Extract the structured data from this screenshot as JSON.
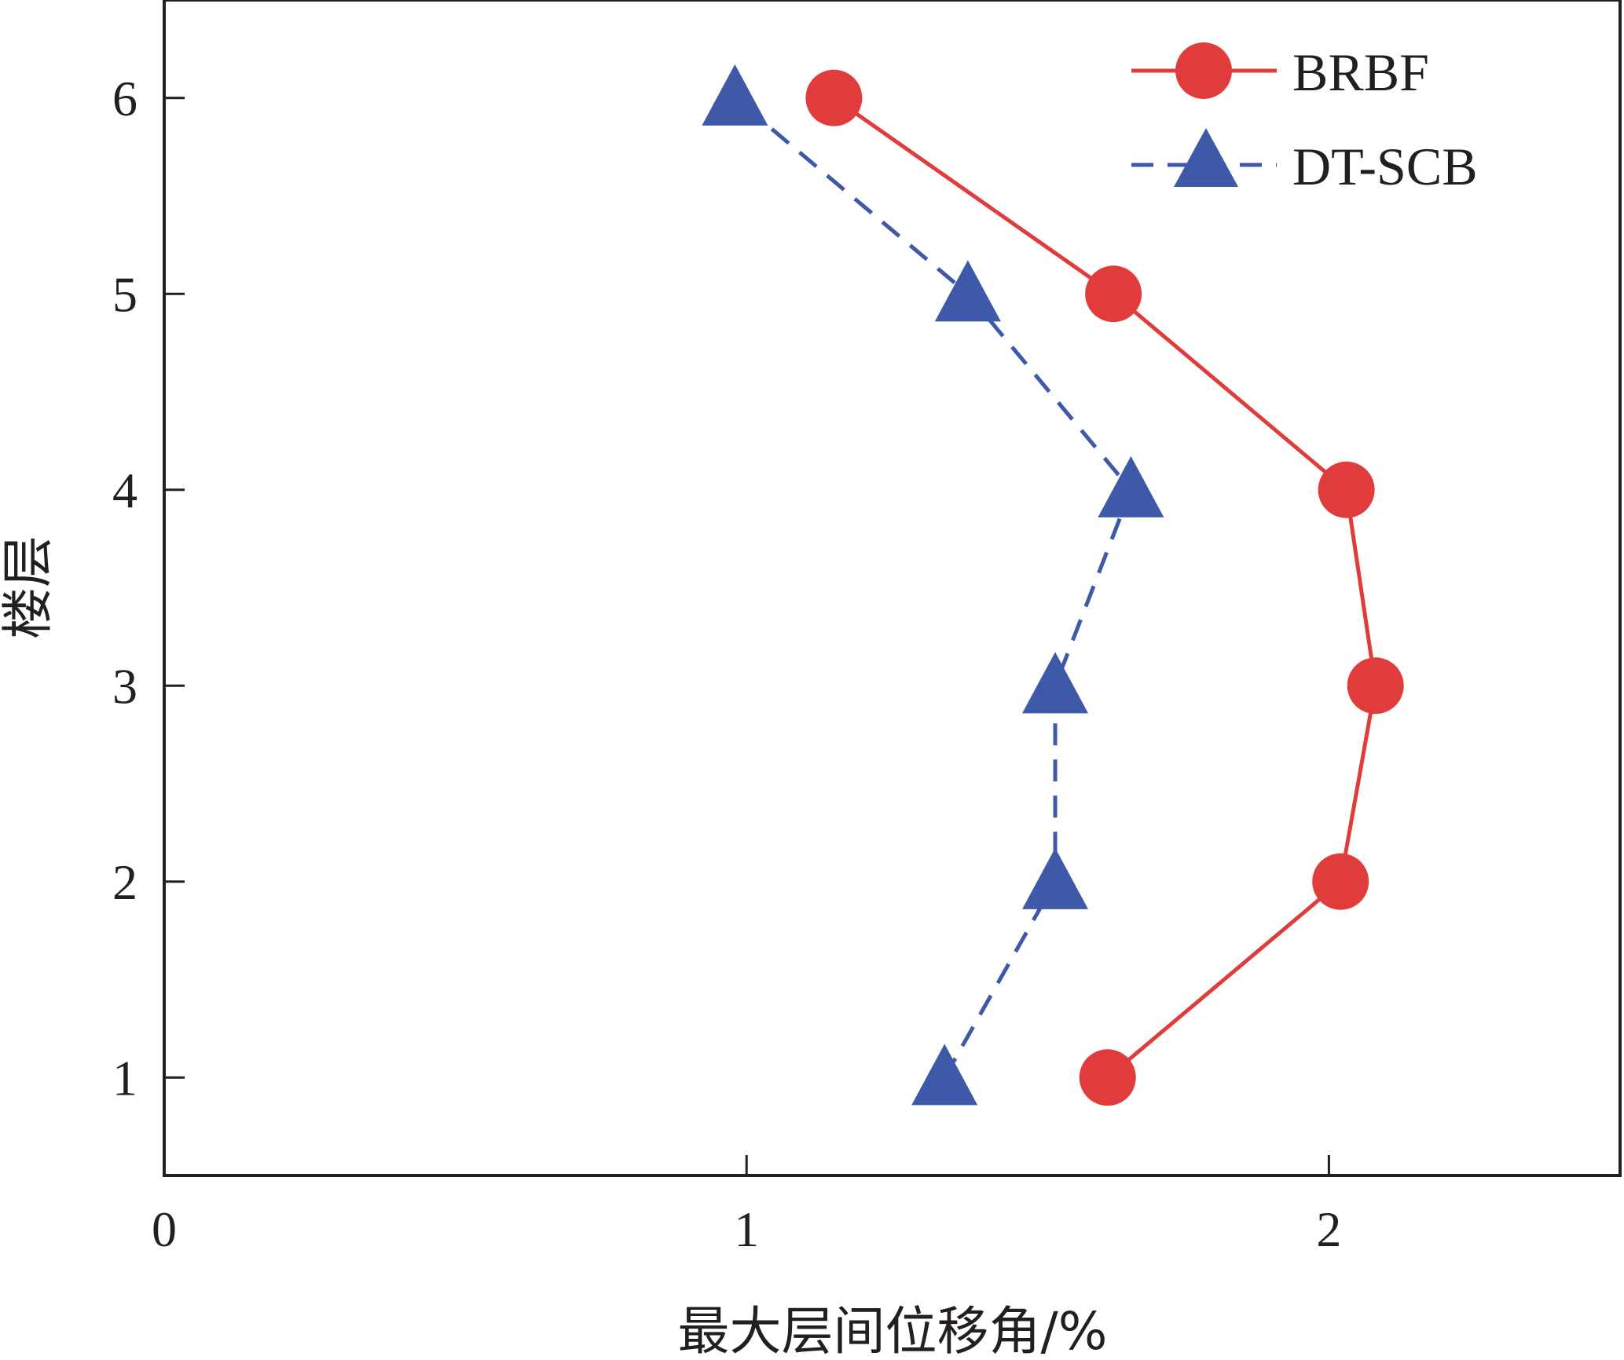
{
  "chart_data": {
    "type": "line",
    "xlabel": "最大层间位移角/%",
    "ylabel": "楼层",
    "xlim": [
      0,
      2.5
    ],
    "ylim": [
      0.5,
      6.5
    ],
    "xticks": [
      0,
      1,
      2
    ],
    "yticks": [
      1,
      2,
      3,
      4,
      5,
      6
    ],
    "grid": false,
    "legend_position": "top-right",
    "series": [
      {
        "name": "BRBF",
        "color": "#e03c3c",
        "line_style": "solid",
        "marker": "circle",
        "points": [
          {
            "x": 1.62,
            "y": 1
          },
          {
            "x": 2.02,
            "y": 2
          },
          {
            "x": 2.08,
            "y": 3
          },
          {
            "x": 2.03,
            "y": 4
          },
          {
            "x": 1.63,
            "y": 5
          },
          {
            "x": 1.15,
            "y": 6
          }
        ]
      },
      {
        "name": "DT-SCB",
        "color": "#3d59a8",
        "line_style": "dashed",
        "marker": "triangle",
        "points": [
          {
            "x": 1.34,
            "y": 1
          },
          {
            "x": 1.53,
            "y": 2
          },
          {
            "x": 1.53,
            "y": 3
          },
          {
            "x": 1.66,
            "y": 4
          },
          {
            "x": 1.38,
            "y": 5
          },
          {
            "x": 0.98,
            "y": 6
          }
        ]
      }
    ]
  }
}
